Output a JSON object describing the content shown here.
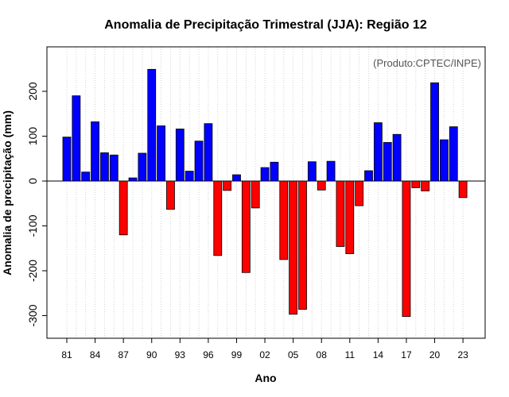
{
  "chart_data": {
    "type": "bar",
    "title": "Anomalia de Precipitação Trimestral (JJA): Região 12",
    "xlabel": "Ano",
    "ylabel": "Anomalia de precipitação (mm)",
    "annotation": "(Produto:CPTEC/INPE)",
    "ylim": [
      -350,
      300
    ],
    "yticks": [
      -300,
      -200,
      -100,
      0,
      100,
      200
    ],
    "x_tick_labels": [
      "81",
      "84",
      "87",
      "90",
      "93",
      "96",
      "99",
      "02",
      "05",
      "08",
      "11",
      "14",
      "17",
      "20",
      "23"
    ],
    "x_tick_years": [
      1981,
      1984,
      1987,
      1990,
      1993,
      1996,
      1999,
      2002,
      2005,
      2008,
      2011,
      2014,
      2017,
      2020,
      2023
    ],
    "categories": [
      1981,
      1982,
      1983,
      1984,
      1985,
      1986,
      1987,
      1988,
      1989,
      1990,
      1991,
      1992,
      1993,
      1994,
      1995,
      1996,
      1997,
      1998,
      1999,
      2000,
      2001,
      2002,
      2003,
      2004,
      2005,
      2006,
      2007,
      2008,
      2009,
      2010,
      2011,
      2012,
      2013,
      2014,
      2015,
      2016,
      2017,
      2018,
      2019,
      2020,
      2021,
      2022,
      2023
    ],
    "values": [
      98,
      190,
      20,
      132,
      63,
      58,
      -120,
      7,
      62,
      249,
      123,
      -63,
      116,
      22,
      89,
      128,
      -166,
      -21,
      14,
      -204,
      -60,
      30,
      42,
      -175,
      -297,
      -286,
      43,
      -20,
      44,
      -146,
      -162,
      -55,
      23,
      130,
      86,
      104,
      -302,
      -15,
      -22,
      219,
      92,
      121,
      -37
    ],
    "colors": {
      "positive": "#0000ff",
      "negative": "#ff0000"
    },
    "grid": true
  }
}
